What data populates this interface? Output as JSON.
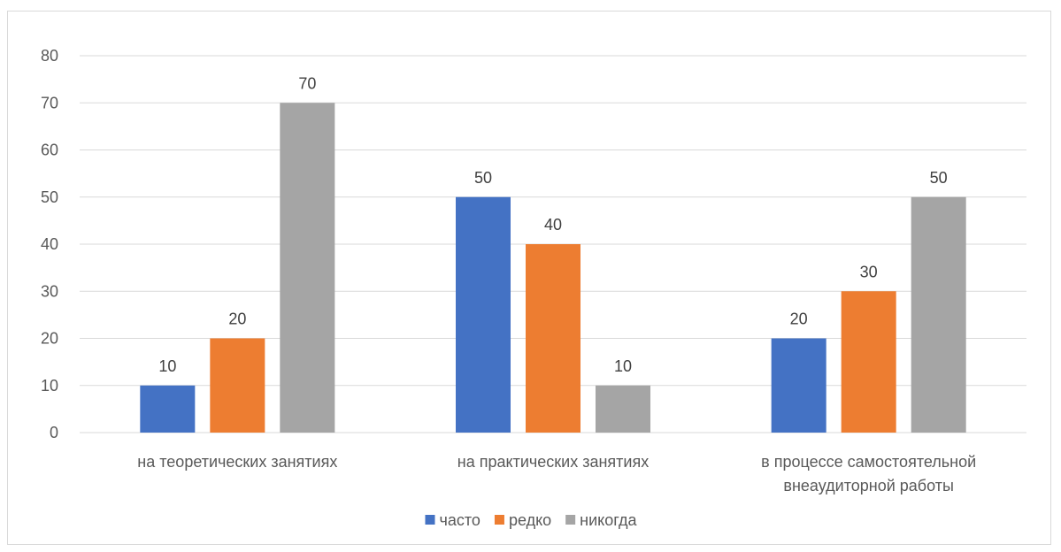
{
  "chart_data": {
    "type": "bar",
    "title": "",
    "xlabel": "",
    "ylabel": "",
    "categories": [
      [
        "на теоретических занятиях"
      ],
      [
        "на практических занятиях"
      ],
      [
        "в процессе самостоятельной",
        "внеаудиторной работы"
      ]
    ],
    "series": [
      {
        "name": "часто",
        "color": "#4472C4",
        "values": [
          10,
          50,
          20
        ]
      },
      {
        "name": "редко",
        "color": "#ED7D31",
        "values": [
          20,
          40,
          30
        ]
      },
      {
        "name": "никогда",
        "color": "#A5A5A5",
        "values": [
          70,
          10,
          50
        ]
      }
    ],
    "ylim": [
      0,
      80
    ],
    "yticks": [
      "0",
      "10",
      "20",
      "30",
      "40",
      "50",
      "60",
      "70",
      "80"
    ],
    "grid": true,
    "data_labels": true,
    "legend_position": "bottom",
    "colors": {
      "gridline": "#d9d9d9",
      "axis_line": "#d9d9d9",
      "frame": "#d9d9d9"
    }
  }
}
